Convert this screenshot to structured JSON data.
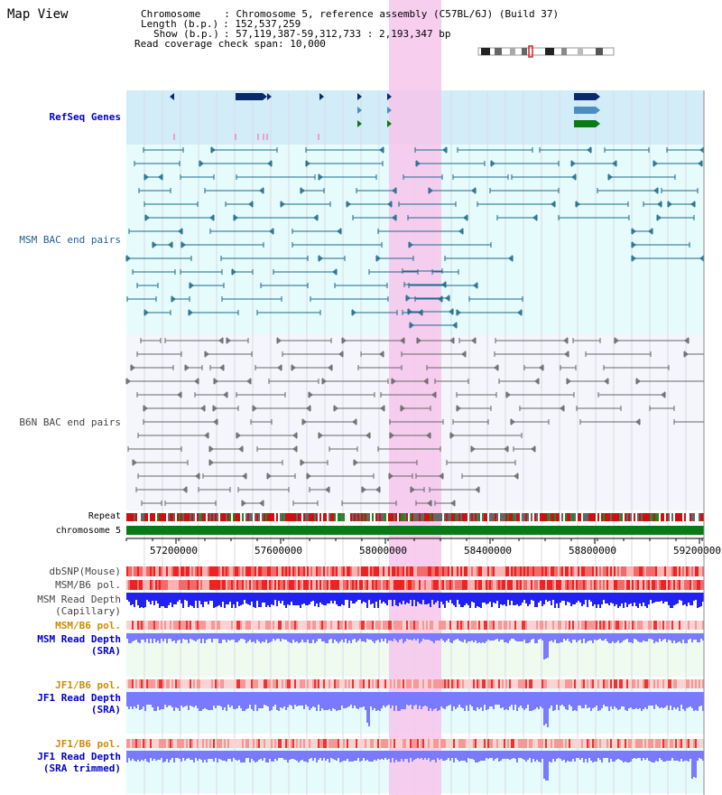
{
  "page": {
    "title": "Map View"
  },
  "header": {
    "chromosome_key": "Chromosome",
    "chromosome_value": ": Chromosome 5, reference assembly (C57BL/6J) (Build 37)",
    "length_key": "Length (b.p.)",
    "length_value": ": 152,537,259",
    "show_key": "Show (b.p.)",
    "show_value": ": 57,119,387-59,312,733 : 2,193,347 bp",
    "coverage_key": "Read coverage check span",
    "coverage_value": ": 10,000"
  },
  "tracks": {
    "refseq": "RefSeq Genes",
    "msm_bac": "MSM BAC end pairs",
    "b6n_bac": "B6N BAC end pairs",
    "repeat": "Repeat",
    "chromosome": "chromosome 5",
    "dbsnp": "dbSNP(Mouse)",
    "msm_b6_pol": "MSM/B6 pol.",
    "msm_read_depth_cap_1": "MSM Read Depth",
    "msm_read_depth_cap_2": "(Capillary)",
    "msm_b6_pol_sra": "MSM/B6 pol.",
    "msm_read_depth_sra_1": "MSM Read Depth",
    "msm_read_depth_sra_2": "(SRA)",
    "jf1_b6_pol": "JF1/B6 pol.",
    "jf1_read_depth_1": "JF1 Read Depth",
    "jf1_read_depth_2": "(SRA)",
    "jf1_b6_pol_trim": "JF1/B6 pol.",
    "jf1_read_depth_trim_1": "JF1 Read Depth",
    "jf1_read_depth_trim_2": "(SRA trimmed)"
  },
  "axis": {
    "ticks": [
      "57200000",
      "57600000",
      "58000000",
      "58400000",
      "58800000",
      "59200000"
    ]
  },
  "colors": {
    "highlight": "#f7c6ec",
    "refseq_bg": "#d2ecf8",
    "bac_bg": "#e6fbfb",
    "b6n_bg": "#f4f6fb",
    "gene_dark": "#0b2a6b",
    "gene_mid": "#4a8fbd",
    "gene_green": "#0a7a16",
    "msm_pair": "#1c6a8c",
    "b6n_pair": "#666666",
    "chromosome": "#0a7a16",
    "depth_dark": "#2222ee",
    "depth_light": "#7a7aff"
  }
}
